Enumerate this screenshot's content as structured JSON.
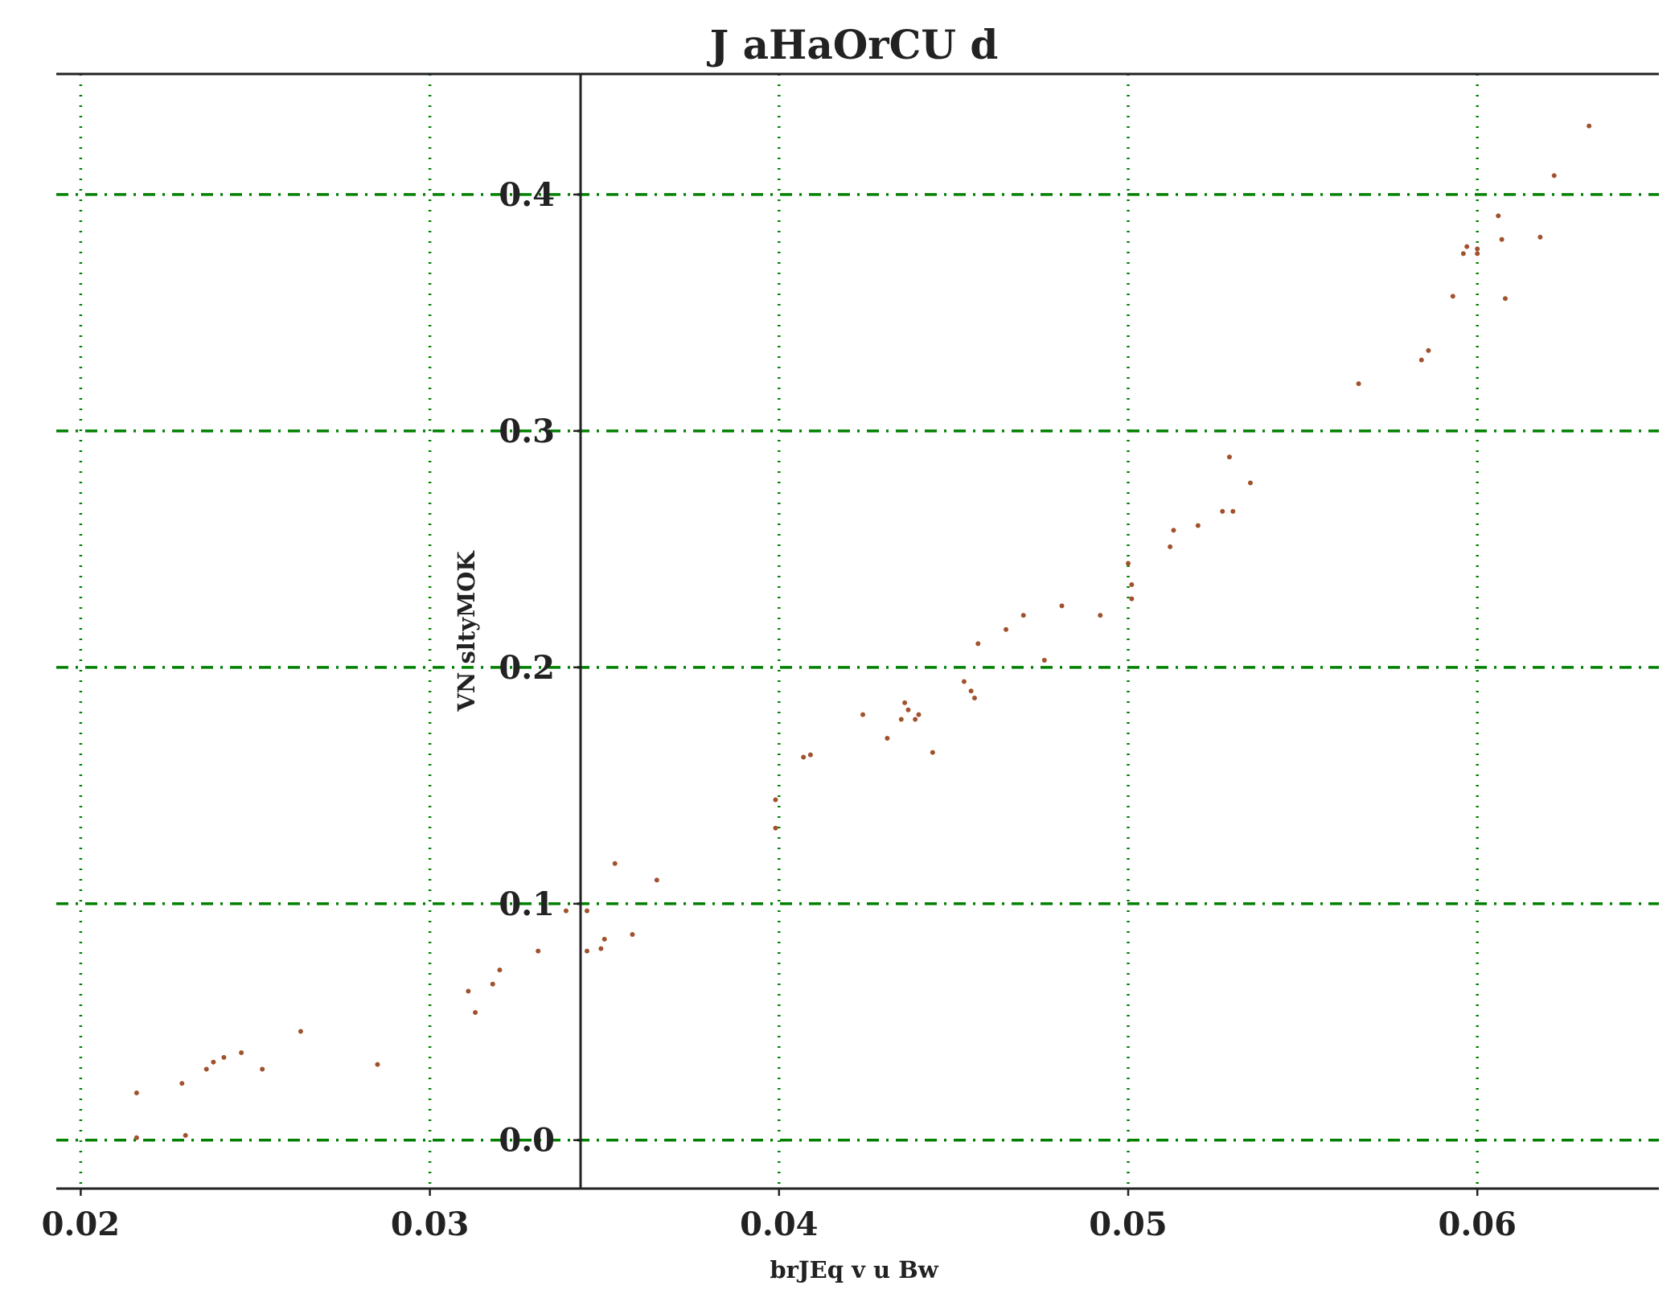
{
  "chart_data": {
    "type": "scatter",
    "title": "J aHaOrCU  d",
    "xlabel": "brJEq v u Bw",
    "ylabel": "VN sltyMOK",
    "xlim": [
      0.0193,
      0.0652
    ],
    "ylim": [
      -0.0205,
      0.451
    ],
    "xticks": [
      0.02,
      0.03,
      0.04,
      0.05,
      0.06
    ],
    "xtick_labels": [
      "0.02",
      "0.03",
      "0.04",
      "0.05",
      "0.06"
    ],
    "yticks": [
      0.0,
      0.1,
      0.2,
      0.3,
      0.4
    ],
    "ytick_labels": [
      "0.0",
      "0.1",
      "0.2",
      "0.3",
      "0.4"
    ],
    "grid": true,
    "marker_color": "#a0522d",
    "grid_color": "#008000",
    "x": [
      0.0216,
      0.0216,
      0.0229,
      0.023,
      0.0236,
      0.0238,
      0.0241,
      0.0246,
      0.0252,
      0.0263,
      0.0285,
      0.0311,
      0.0313,
      0.0318,
      0.032,
      0.0331,
      0.0339,
      0.0345,
      0.0345,
      0.0349,
      0.035,
      0.0353,
      0.0358,
      0.0365,
      0.0399,
      0.0399,
      0.0407,
      0.0409,
      0.0424,
      0.0431,
      0.0435,
      0.0436,
      0.0437,
      0.0439,
      0.044,
      0.0444,
      0.0453,
      0.0455,
      0.0456,
      0.0457,
      0.0465,
      0.047,
      0.0476,
      0.0481,
      0.0492,
      0.05,
      0.0501,
      0.0501,
      0.0512,
      0.0513,
      0.052,
      0.0527,
      0.0529,
      0.053,
      0.0535,
      0.0566,
      0.0584,
      0.0586,
      0.0593,
      0.0596,
      0.0597,
      0.06,
      0.06,
      0.0606,
      0.0607,
      0.0608,
      0.0618,
      0.0622,
      0.0632
    ],
    "y": [
      0.02,
      0.001,
      0.024,
      0.002,
      0.03,
      0.033,
      0.035,
      0.037,
      0.03,
      0.046,
      0.032,
      0.063,
      0.054,
      0.066,
      0.072,
      0.08,
      0.097,
      0.08,
      0.097,
      0.081,
      0.085,
      0.117,
      0.087,
      0.11,
      0.144,
      0.132,
      0.162,
      0.163,
      0.18,
      0.17,
      0.178,
      0.185,
      0.182,
      0.178,
      0.18,
      0.164,
      0.194,
      0.19,
      0.187,
      0.21,
      0.216,
      0.222,
      0.203,
      0.226,
      0.222,
      0.244,
      0.235,
      0.229,
      0.251,
      0.258,
      0.26,
      0.266,
      0.289,
      0.266,
      0.278,
      0.32,
      0.33,
      0.334,
      0.357,
      0.375,
      0.378,
      0.377,
      0.375,
      0.391,
      0.381,
      0.356,
      0.382,
      0.408,
      0.429
    ]
  }
}
